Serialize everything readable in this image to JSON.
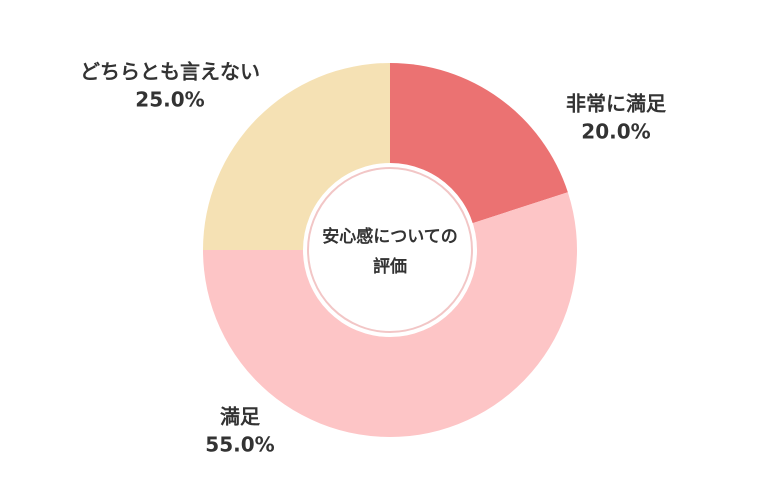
{
  "chart_data": {
    "type": "pie",
    "title": "安心感についての評価",
    "categories": [
      "非常に満足",
      "満足",
      "どちらとも言えない"
    ],
    "values": [
      20,
      55,
      25
    ],
    "value_labels": [
      "20.0%",
      "55.0%",
      "25.0%"
    ],
    "colors": [
      "#eb7272",
      "#fdc5c6",
      "#f5e1b4"
    ]
  }
}
